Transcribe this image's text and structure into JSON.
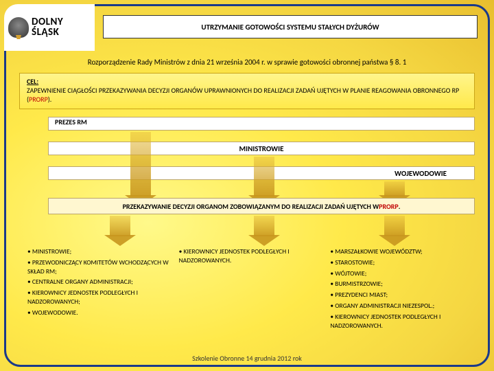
{
  "logo": {
    "line1": "DOLNY",
    "line2": "ŚLĄSK"
  },
  "title": "UTRZYMANIE GOTOWOŚCI SYSTEMU STAŁYCH DYŻURÓW",
  "subtitle": "Rozporządzenie Rady Ministrów z dnia 21 września 2004 r. w sprawie gotowości obronnej państwa § 8. 1",
  "cel": {
    "label": "CEL:",
    "body_pre": "ZAPEWNIENIE CIĄGŁOŚCI PRZEKAZYWANIA DECYZJI ORGANÓW UPRAWNIONYCH DO REALIZACJI ZADAŃ UJĘTYCH W PLANIE REAGOWANIA OBRONNEGO RP (",
    "prorp": "PRORP",
    "body_post": ")."
  },
  "levels": {
    "l1": "PREZES RM",
    "l2": "MINISTROWIE",
    "l3": "WOJEWODOWIE"
  },
  "decision": {
    "pre": "PRZEKAZYWANIE DECYZJI ORGANOM ZOBOWIĄZANYM DO REALIZACJI ZADAŃ UJĘTYCH W ",
    "prorp": "PRORP",
    "post": "."
  },
  "columns": {
    "c1": [
      "• MINISTROWIE;",
      "• PRZEWODNICZĄCY KOMITETÓW WCHODZĄCYCH W SKŁAD RM;",
      "• CENTRALNE ORGANY ADMINISTRACJI;",
      "• KIEROWNICY JEDNOSTEK PODLEGŁYCH I NADZOROWANYCH;",
      "• WOJEWODOWIE."
    ],
    "c2": [
      "• KIEROWNICY JEDNOSTEK PODLEGŁYCH I NADZOROWANYCH."
    ],
    "c3": [
      "• MARSZAŁKOWIE WOJEWÓDZTW;",
      "• STAROSTOWIE;",
      "• WÓJTOWIE;",
      "• BURMISTRZOWIE;",
      "• PREZYDENCI MIAST;",
      "• ORGANY ADMINISTRACJI NIEZESPOL.;",
      "• KIEROWNICY JEDNOSTEK PODLEGŁYCH I NADZOROWANYCH."
    ]
  },
  "footer": "Szkolenie Obronne 14 grudnia 2012 rok",
  "colors": {
    "frame": "#1a3a8a",
    "box_border": "#bba56a",
    "arrow_fill": "#caa032",
    "prorp": "#c00000"
  }
}
